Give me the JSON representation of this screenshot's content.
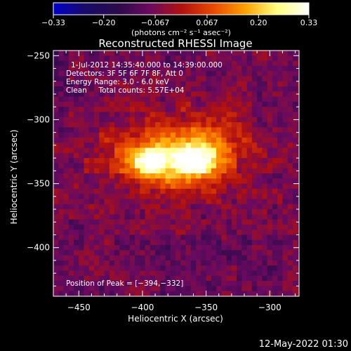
{
  "colorbar": {
    "ticks": [
      {
        "value": -0.33,
        "label": "−0.33"
      },
      {
        "value": -0.2,
        "label": "−0.20"
      },
      {
        "value": -0.067,
        "label": "−0.067"
      },
      {
        "value": 0.067,
        "label": "0.067"
      },
      {
        "value": 0.2,
        "label": "0.20"
      },
      {
        "value": 0.33,
        "label": "0.33"
      }
    ],
    "range": [
      -0.33,
      0.33
    ],
    "unit_label": "(photons cm⁻² s⁻¹ asec⁻²)",
    "colors": [
      "#0000cc",
      "#1a0a6a",
      "#2a0a4a",
      "#6a0a60",
      "#b01010",
      "#e84800",
      "#ffa000",
      "#ffff80",
      "#ffffff"
    ]
  },
  "chart_data": {
    "type": "heatmap",
    "title": "Reconstructed RHESSI Image",
    "xlabel": "Heliocentric X (arcsec)",
    "ylabel": "Heliocentric Y (arcsec)",
    "xlim": [
      -470,
      -277
    ],
    "ylim": [
      -438,
      -246
    ],
    "x_ticks": [
      {
        "value": -450,
        "label": "−450"
      },
      {
        "value": -400,
        "label": "−400"
      },
      {
        "value": -350,
        "label": "−350"
      },
      {
        "value": -300,
        "label": "−300"
      }
    ],
    "y_ticks": [
      {
        "value": -250,
        "label": "−250"
      },
      {
        "value": -300,
        "label": "−300"
      },
      {
        "value": -350,
        "label": "−350"
      },
      {
        "value": -400,
        "label": "−400"
      }
    ],
    "annotations": [
      "1-Jul-2012 14:35:40.000 to 14:39:00.000",
      "Detectors: 3F 5F 6F 7F 8F, Att 0",
      "Energy Range: 3.0 - 6.0 keV",
      "Clean     Total counts: 5.57E+04"
    ],
    "peak_label": "Position of Peak = [−394,−332]",
    "peak": [
      -394,
      -332
    ],
    "sources": [
      {
        "x": -394,
        "y": -332,
        "amplitude": 0.33,
        "sigma_x": 11,
        "sigma_y": 8
      },
      {
        "x": -358,
        "y": -332,
        "amplitude": 0.3,
        "sigma_x": 14,
        "sigma_y": 10
      },
      {
        "x": -375,
        "y": -330,
        "amplitude": 0.18,
        "sigma_x": 38,
        "sigma_y": 22
      },
      {
        "x": -345,
        "y": -305,
        "amplitude": 0.05,
        "sigma_x": 25,
        "sigma_y": 15
      },
      {
        "x": -425,
        "y": -320,
        "amplitude": 0.03,
        "sigma_x": 15,
        "sigma_y": 20
      }
    ],
    "background_level": -0.08,
    "pixel_size_arcsec": 4
  },
  "footer": {
    "timestamp": "12-May-2022 01:30"
  }
}
